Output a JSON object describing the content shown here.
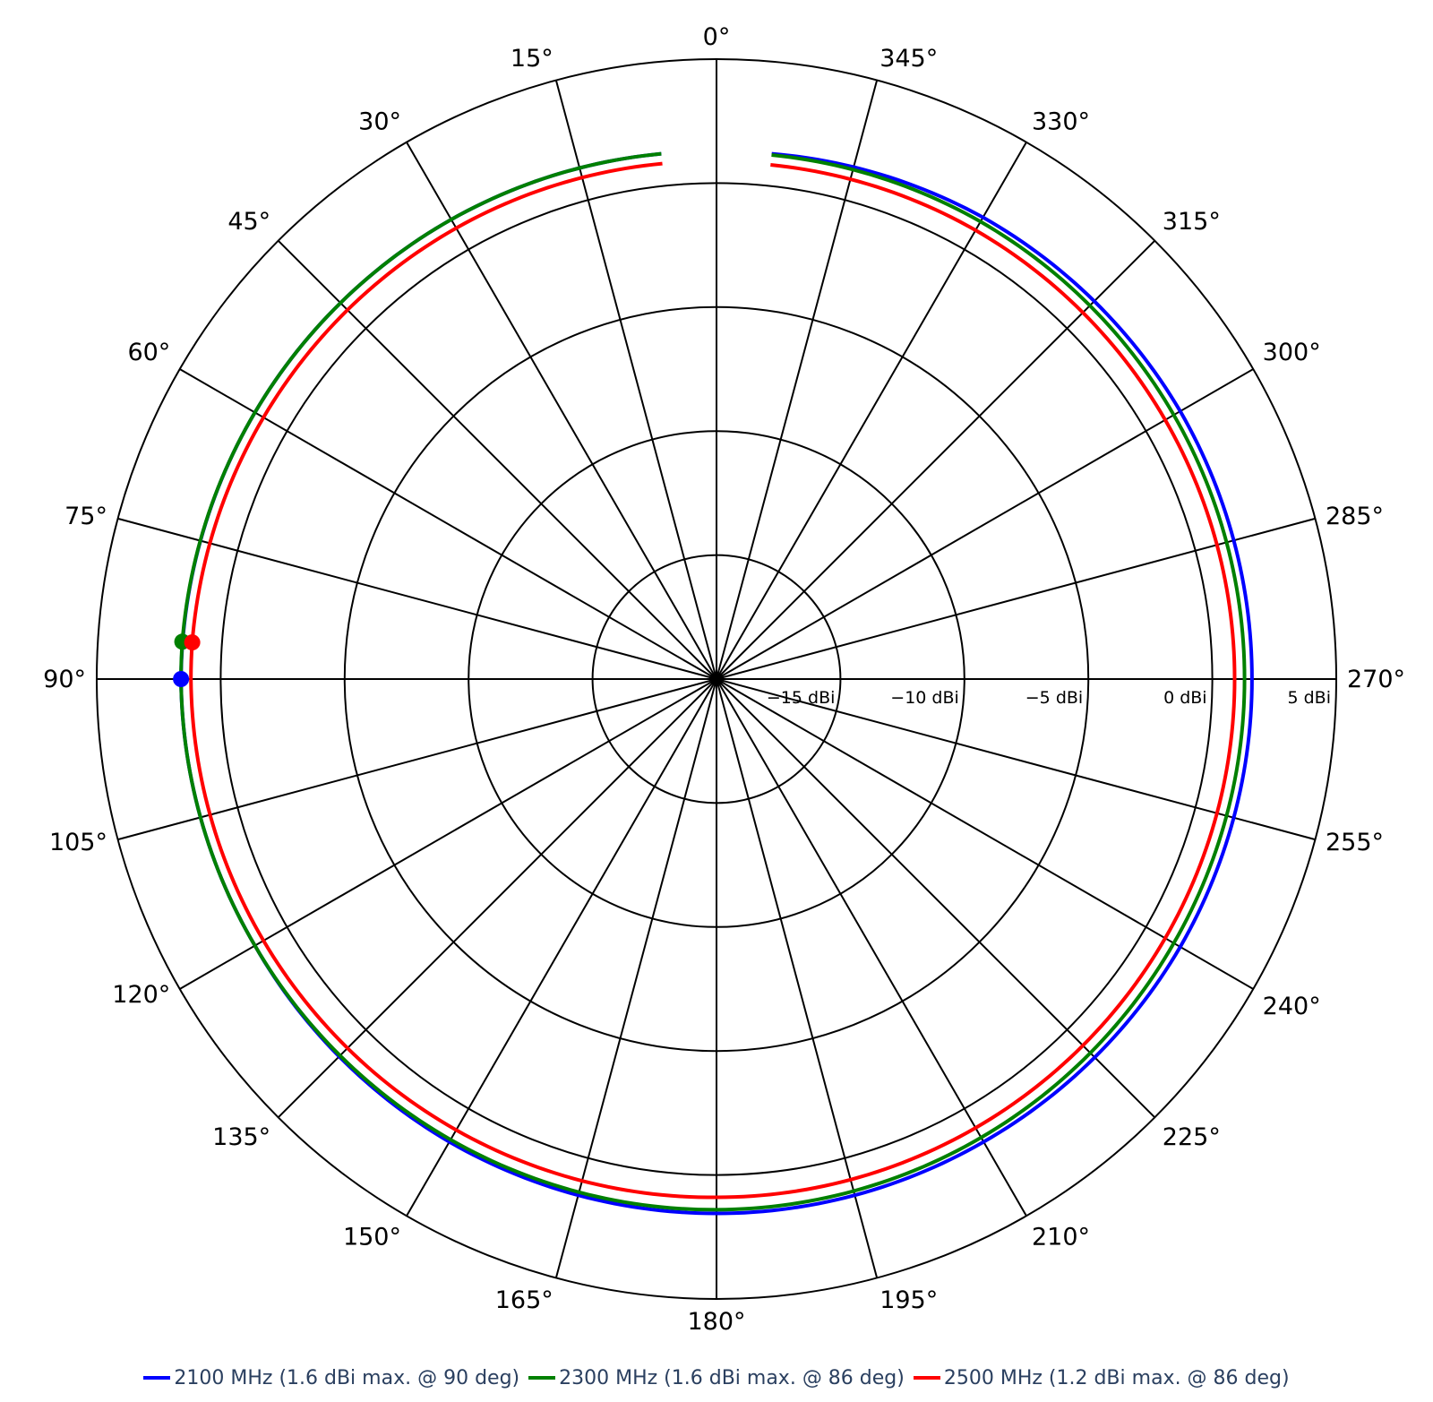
{
  "chart_data": {
    "type": "polar-line",
    "angle_direction": "counterclockwise",
    "angle_zero": "top",
    "angular_ticks": [
      "0°",
      "15°",
      "30°",
      "45°",
      "60°",
      "75°",
      "90°",
      "105°",
      "120°",
      "135°",
      "150°",
      "165°",
      "180°",
      "195°",
      "210°",
      "225°",
      "240°",
      "255°",
      "270°",
      "285°",
      "300°",
      "315°",
      "330°",
      "345°"
    ],
    "radial_ticks": [
      "−15 dBi",
      "−10 dBi",
      "−5 dBi",
      "0 dBi",
      "5 dBi"
    ],
    "radial_tick_values": [
      -15,
      -10,
      -5,
      0,
      5
    ],
    "radial_range": [
      -20,
      5
    ],
    "series": [
      {
        "name": "2100 MHz (1.6 dBi max. @ 90 deg)",
        "color": "#0000ff",
        "gain_at_angle": [
          [
            6,
            1.3
          ],
          [
            30,
            1.4
          ],
          [
            60,
            1.5
          ],
          [
            90,
            1.6
          ],
          [
            120,
            1.5
          ],
          [
            150,
            1.55
          ],
          [
            180,
            1.55
          ],
          [
            210,
            1.55
          ],
          [
            240,
            1.6
          ],
          [
            270,
            1.6
          ],
          [
            300,
            1.6
          ],
          [
            330,
            1.5
          ],
          [
            354,
            1.3
          ]
        ],
        "max_point": {
          "angle": 90,
          "gain": 1.6
        }
      },
      {
        "name": "2300 MHz (1.6 dBi max. @ 86 deg)",
        "color": "#008000",
        "gain_at_angle": [
          [
            6,
            1.3
          ],
          [
            30,
            1.4
          ],
          [
            60,
            1.5
          ],
          [
            86,
            1.6
          ],
          [
            90,
            1.6
          ],
          [
            120,
            1.5
          ],
          [
            150,
            1.45
          ],
          [
            180,
            1.4
          ],
          [
            210,
            1.35
          ],
          [
            240,
            1.3
          ],
          [
            270,
            1.3
          ],
          [
            300,
            1.3
          ],
          [
            330,
            1.3
          ],
          [
            354,
            1.25
          ]
        ],
        "max_point": {
          "angle": 86,
          "gain": 1.6
        }
      },
      {
        "name": "2500 MHz (1.2 dBi max. @ 86 deg)",
        "color": "#ff0000",
        "gain_at_angle": [
          [
            6,
            0.9
          ],
          [
            30,
            1.0
          ],
          [
            60,
            1.1
          ],
          [
            86,
            1.2
          ],
          [
            90,
            1.2
          ],
          [
            120,
            1.1
          ],
          [
            150,
            1.0
          ],
          [
            180,
            0.9
          ],
          [
            210,
            0.9
          ],
          [
            240,
            0.9
          ],
          [
            270,
            0.9
          ],
          [
            300,
            0.9
          ],
          [
            330,
            0.9
          ],
          [
            354,
            0.85
          ]
        ],
        "max_point": {
          "angle": 86,
          "gain": 1.2
        }
      }
    ]
  }
}
